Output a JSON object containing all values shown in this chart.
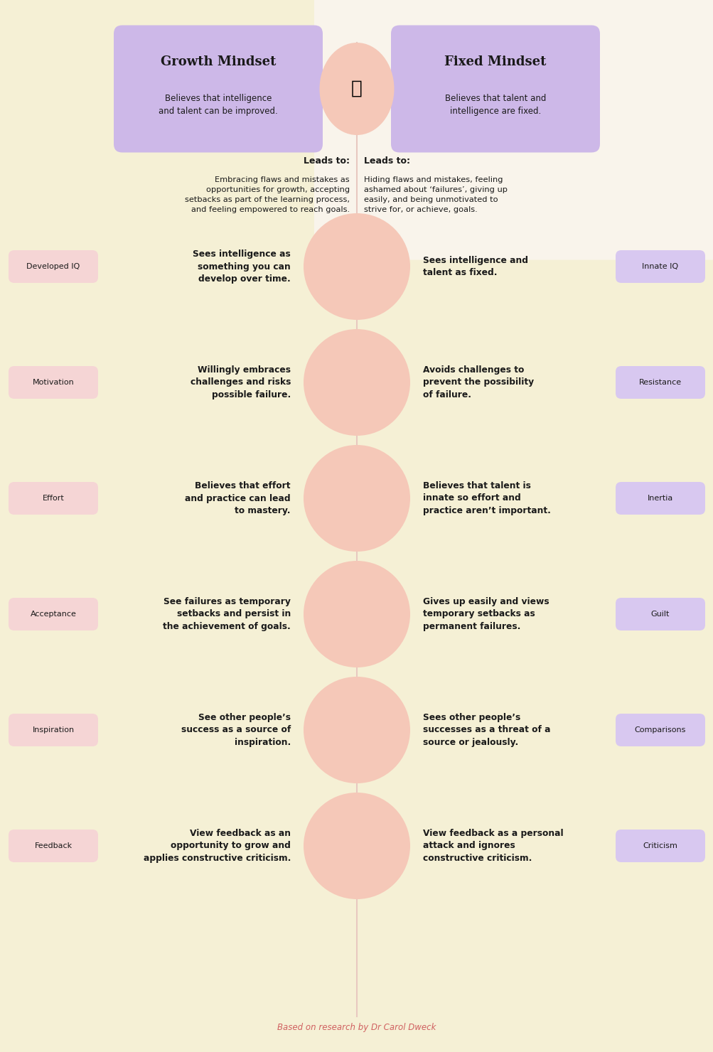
{
  "bg_color": "#f5f0d5",
  "bg_right_blob_color": "#faf5f0",
  "center_line_color": "#e8c8c0",
  "circle_color": "#f5c8b8",
  "header_circle_color": "#f5c8b8",
  "purple_box_color": "#cdb8e8",
  "pink_tag_color": "#f5d5d5",
  "purple_tag_color": "#d8c8f0",
  "title_left": "Growth Mindset",
  "title_right": "Fixed Mindset",
  "subtitle_left": "Believes that intelligence\nand talent can be improved.",
  "subtitle_right": "Believes that talent and\nintelligence are fixed.",
  "leads_label_left": "Leads to:",
  "leads_label_right": "Leads to:",
  "leads_left_text": "Embracing flaws and mistakes as\nopportunities for growth, accepting\nsetbacks as part of the learning process,\nand feeling empowered to reach goals.",
  "leads_right_text": "Hiding flaws and mistakes, feeling\nashamed about ‘failures’, giving up\neasily, and being unmotivated to\nstrive for, or achieve, goals.",
  "rows": [
    {
      "left_tag": "Developed IQ",
      "left_text": "Sees intelligence as\nsomething you can\ndevelop over time.",
      "right_text": "Sees intelligence and\ntalent as fixed.",
      "right_tag": "Innate IQ"
    },
    {
      "left_tag": "Motivation",
      "left_text": "Willingly embraces\nchallenges and risks\npossible failure.",
      "right_text": "Avoids challenges to\nprevent the possibility\nof failure.",
      "right_tag": "Resistance"
    },
    {
      "left_tag": "Effort",
      "left_text": "Believes that effort\nand practice can lead\nto mastery.",
      "right_text": "Believes that talent is\ninnate so effort and\npractice aren’t important.",
      "right_tag": "Inertia"
    },
    {
      "left_tag": "Acceptance",
      "left_text": "See failures as temporary\nsetbacks and persist in\nthe achievement of goals.",
      "right_text": "Gives up easily and views\ntemporary setbacks as\npermanent failures.",
      "right_tag": "Guilt"
    },
    {
      "left_tag": "Inspiration",
      "left_text": "See other people’s\nsuccess as a source of\ninspiration.",
      "right_text": "Sees other people’s\nsuccesses as a threat of a\nsource or jealously.",
      "right_tag": "Comparisons"
    },
    {
      "left_tag": "Feedback",
      "left_text": "View feedback as an\nopportunity to grow and\napplies constructive criticism.",
      "right_text": "View feedback as a personal\nattack and ignores\nconstructive criticism.",
      "right_tag": "Criticism"
    }
  ],
  "footer": "Based on research by Dr Carol Dweck",
  "footer_color": "#d06060"
}
